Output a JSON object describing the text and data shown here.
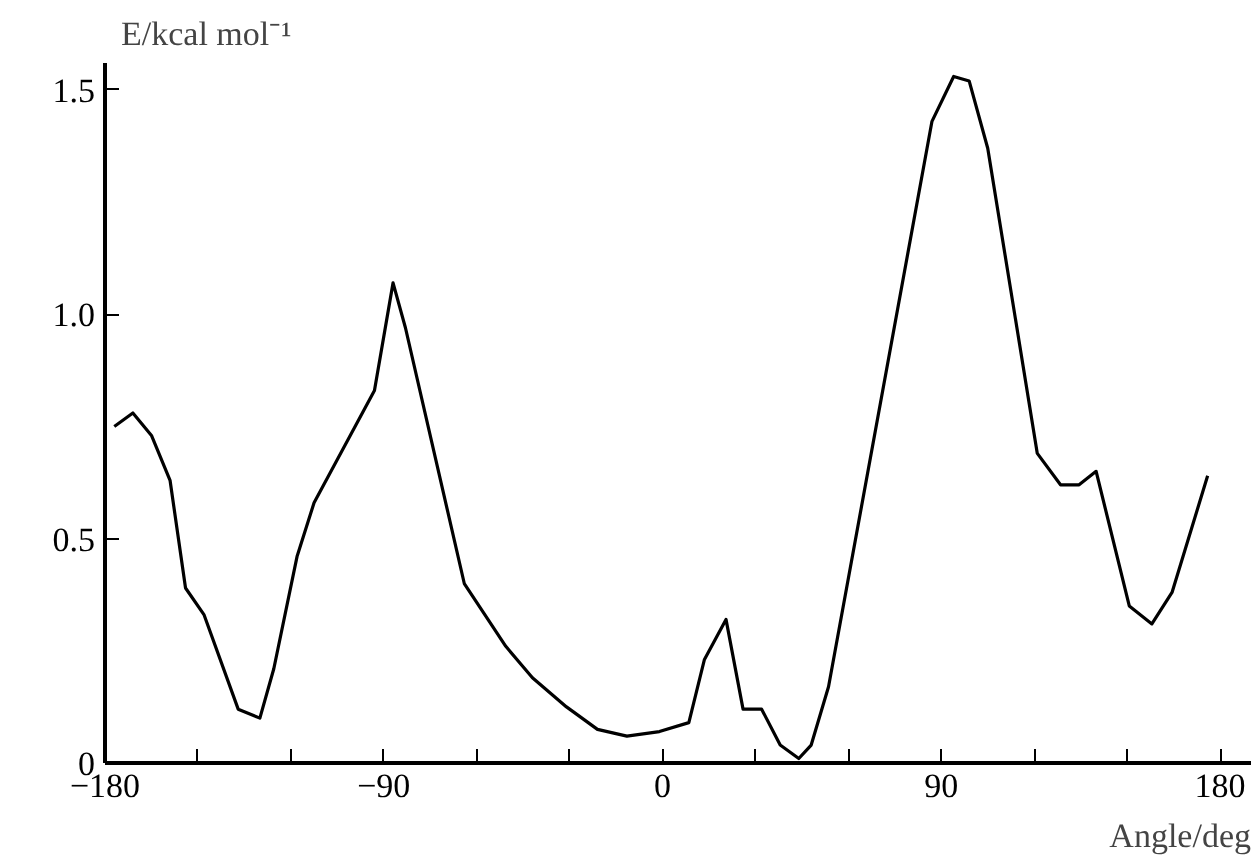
{
  "chart_data": {
    "type": "line",
    "xlabel": "Angle/deg",
    "ylabel": "E/kcal mol⁻¹",
    "xlim": [
      -180,
      190
    ],
    "ylim": [
      0,
      1.56
    ],
    "xticks": [
      {
        "value": -180,
        "label": "−180"
      },
      {
        "value": -150,
        "label": null
      },
      {
        "value": -120,
        "label": null
      },
      {
        "value": -90,
        "label": "−90"
      },
      {
        "value": -60,
        "label": null
      },
      {
        "value": -30,
        "label": null
      },
      0,
      {
        "value": 30,
        "label": null
      },
      {
        "value": 60,
        "label": null
      },
      90,
      {
        "value": 120,
        "label": null
      },
      {
        "value": 150,
        "label": null
      },
      180
    ],
    "yticks": [
      0,
      0.5,
      {
        "value": 1.0,
        "label": "1.0"
      },
      1.5
    ],
    "marker": "none",
    "line_style": "solid",
    "series": [
      {
        "color": "#000000",
        "x": [
          -177,
          -171,
          -165,
          -159,
          -154,
          -148,
          -137,
          -130,
          -125.5,
          -118,
          -112.5,
          -93,
          -87,
          -83,
          -64,
          -50.6,
          -42,
          -31,
          -21,
          -11.5,
          -1,
          8.5,
          13.5,
          20.5,
          26,
          32,
          38,
          44,
          48,
          53.6,
          87,
          94,
          99,
          105,
          121,
          128.5,
          134.5,
          140,
          150.7,
          158,
          164.5,
          176
        ],
        "values": [
          0.75,
          0.78,
          0.73,
          0.63,
          0.39,
          0.33,
          0.12,
          0.1,
          0.21,
          0.46,
          0.58,
          0.83,
          1.07,
          0.97,
          0.4,
          0.26,
          0.19,
          0.125,
          0.075,
          0.06,
          0.07,
          0.09,
          0.23,
          0.32,
          0.12,
          0.12,
          0.04,
          0.01,
          0.04,
          0.17,
          1.43,
          1.53,
          1.52,
          1.37,
          0.69,
          0.62,
          0.62,
          0.65,
          0.35,
          0.31,
          0.38,
          0.64
        ]
      }
    ]
  }
}
